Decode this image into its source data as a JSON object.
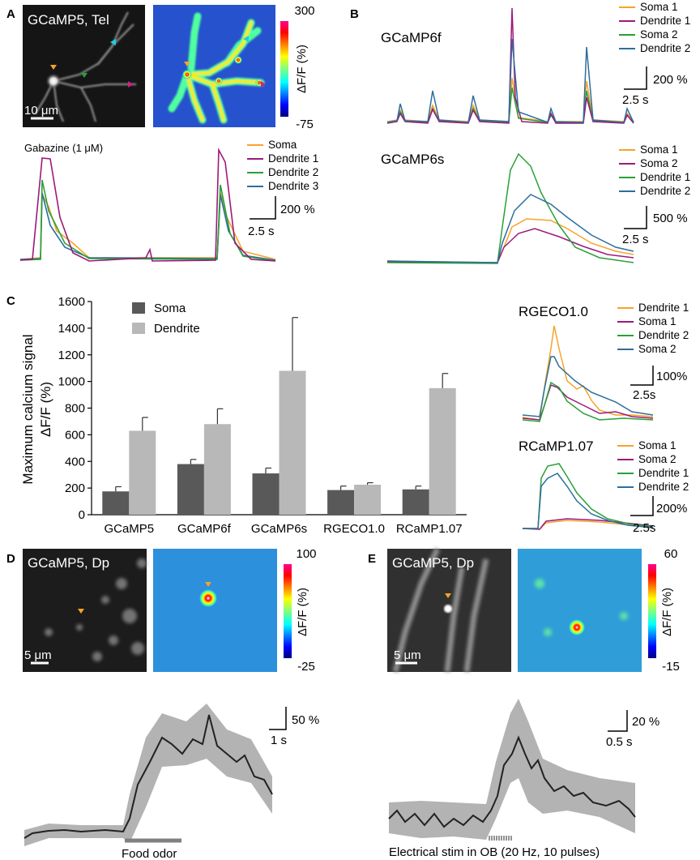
{
  "panels": {
    "A": {
      "letter": "A",
      "image_label": "GCaMP5, Tel",
      "scale_bar": "10 μm",
      "colorbar": {
        "max": "300",
        "min": "-75",
        "label": "ΔF/F (%)"
      },
      "trace_label": "Gabazine (1 μM)",
      "legend": [
        "Soma",
        "Dendrite 1",
        "Dendrite 2",
        "Dendrite 3"
      ],
      "scale_y": "200 %",
      "scale_x": "2.5 s"
    },
    "B": {
      "letter": "B",
      "top": {
        "title": "GCaMP6f",
        "legend": [
          "Soma 1",
          "Dendrite 1",
          "Soma 2",
          "Dendrite 2"
        ],
        "scale_y": "200 %",
        "scale_x": "2.5 s"
      },
      "bottom": {
        "title": "GCaMP6s",
        "legend": [
          "Soma 1",
          "Soma 2",
          "Dendrite 1",
          "Dendrite 2"
        ],
        "scale_y": "500 %",
        "scale_x": "2.5 s"
      }
    },
    "C": {
      "letter": "C",
      "rgeco": {
        "title": "RGECO1.0",
        "legend": [
          "Dendrite 1",
          "Soma 1",
          "Dendrite 2",
          "Soma 2"
        ],
        "scale_y": "100%",
        "scale_x": "2.5s"
      },
      "rcamp": {
        "title": "RCaMP1.07",
        "legend": [
          "Soma 1",
          "Soma 2",
          "Dendrite 1",
          "Dendrite 2"
        ],
        "scale_y": "200%",
        "scale_x": "2.5s"
      }
    },
    "D": {
      "letter": "D",
      "image_label": "GCaMP5, Dp",
      "scale_bar": "5 μm",
      "colorbar": {
        "max": "100",
        "min": "-25",
        "label": "ΔF/F (%)"
      },
      "scale_y": "50 %",
      "scale_x": "1 s",
      "stim_label": "Food odor"
    },
    "E": {
      "letter": "E",
      "image_label": "GCaMP5, Dp",
      "scale_bar": "5 μm",
      "colorbar": {
        "max": "60",
        "min": "-15",
        "label": "ΔF/F (%)"
      },
      "scale_y": "20 %",
      "scale_x": "0.5 s",
      "stim_label": "Electrical stim in OB (20 Hz, 10 pulses)"
    }
  },
  "colors": {
    "orange": "#f7a32b",
    "purple": "#9c1a7a",
    "green": "#2aa037",
    "blue": "#2d6e9e",
    "soma_bar": "#595959",
    "dendrite_bar": "#b8b8b8"
  },
  "chart_data": [
    {
      "type": "bar",
      "title": "",
      "ylabel": "Maximum calcium signal ΔF/F (%)",
      "xlabel": "",
      "categories": [
        "GCaMP5",
        "GCaMP6f",
        "GCaMP6s",
        "RGECO1.0",
        "RCaMP1.07"
      ],
      "series": [
        {
          "name": "Soma",
          "values": [
            175,
            380,
            310,
            185,
            190
          ],
          "errors": [
            35,
            35,
            40,
            30,
            25
          ]
        },
        {
          "name": "Dendrite",
          "values": [
            630,
            680,
            1080,
            225,
            950
          ],
          "errors": [
            100,
            115,
            400,
            15,
            110
          ]
        }
      ],
      "ylim": [
        0,
        1600
      ],
      "yticks": [
        0,
        200,
        400,
        600,
        800,
        1000,
        1200,
        1400,
        1600
      ],
      "legend_position": "top-left"
    }
  ]
}
